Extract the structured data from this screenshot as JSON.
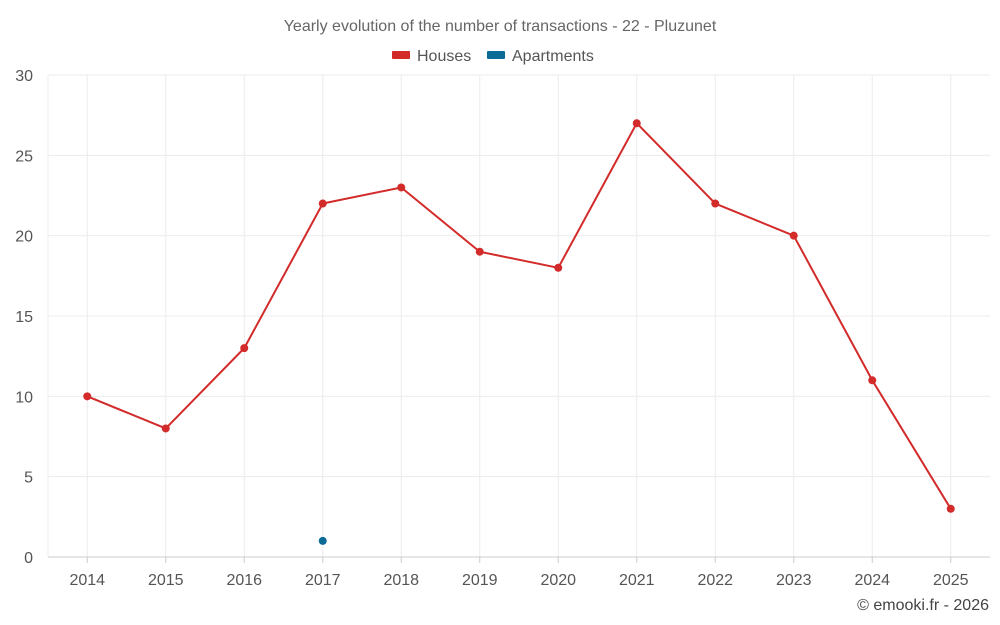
{
  "chart_data": {
    "type": "line",
    "title": "Yearly evolution of the number of transactions - 22 - Pluzunet",
    "categories": [
      "2014",
      "2015",
      "2016",
      "2017",
      "2018",
      "2019",
      "2020",
      "2021",
      "2022",
      "2023",
      "2024",
      "2025"
    ],
    "series": [
      {
        "name": "Houses",
        "color": "#d32a2a",
        "values": [
          10,
          8,
          13,
          22,
          23,
          19,
          18,
          27,
          22,
          20,
          11,
          3
        ]
      },
      {
        "name": "Apartments",
        "color": "#0b6a96",
        "values": [
          null,
          null,
          null,
          1,
          null,
          null,
          null,
          null,
          null,
          null,
          null,
          null
        ]
      }
    ],
    "ylim": [
      0,
      30
    ],
    "yticks": [
      0,
      5,
      10,
      15,
      20,
      25,
      30
    ],
    "grid": true,
    "legend_position": "top-center"
  },
  "credit": "© emooki.fr - 2026"
}
